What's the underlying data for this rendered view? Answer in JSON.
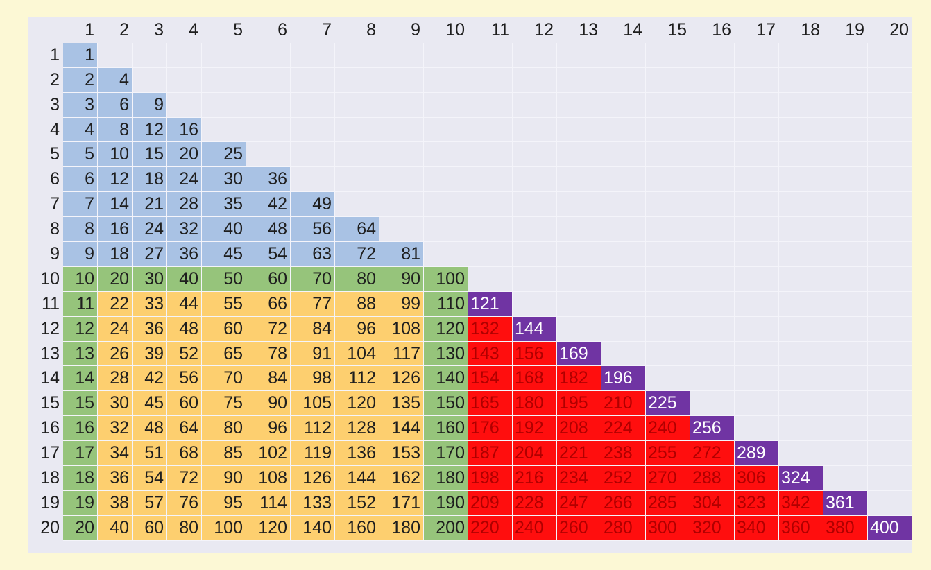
{
  "table": {
    "column_headers": [
      "1",
      "2",
      "3",
      "4",
      "5",
      "6",
      "7",
      "8",
      "9",
      "10",
      "11",
      "12",
      "13",
      "14",
      "15",
      "16",
      "17",
      "18",
      "19",
      "20"
    ],
    "row_headers": [
      "1",
      "2",
      "3",
      "4",
      "5",
      "6",
      "7",
      "8",
      "9",
      "10",
      "11",
      "12",
      "13",
      "14",
      "15",
      "16",
      "17",
      "18",
      "19",
      "20"
    ],
    "rows": [
      [
        "1"
      ],
      [
        "2",
        "4"
      ],
      [
        "3",
        "6",
        "9"
      ],
      [
        "4",
        "8",
        "12",
        "16"
      ],
      [
        "5",
        "10",
        "15",
        "20",
        "25"
      ],
      [
        "6",
        "12",
        "18",
        "24",
        "30",
        "36"
      ],
      [
        "7",
        "14",
        "21",
        "28",
        "35",
        "42",
        "49"
      ],
      [
        "8",
        "16",
        "24",
        "32",
        "40",
        "48",
        "56",
        "64"
      ],
      [
        "9",
        "18",
        "27",
        "36",
        "45",
        "54",
        "63",
        "72",
        "81"
      ],
      [
        "10",
        "20",
        "30",
        "40",
        "50",
        "60",
        "70",
        "80",
        "90",
        "100"
      ],
      [
        "11",
        "22",
        "33",
        "44",
        "55",
        "66",
        "77",
        "88",
        "99",
        "110",
        "121"
      ],
      [
        "12",
        "24",
        "36",
        "48",
        "60",
        "72",
        "84",
        "96",
        "108",
        "120",
        "132",
        "144"
      ],
      [
        "13",
        "26",
        "39",
        "52",
        "65",
        "78",
        "91",
        "104",
        "117",
        "130",
        "143",
        "156",
        "169"
      ],
      [
        "14",
        "28",
        "42",
        "56",
        "70",
        "84",
        "98",
        "112",
        "126",
        "140",
        "154",
        "168",
        "182",
        "196"
      ],
      [
        "15",
        "30",
        "45",
        "60",
        "75",
        "90",
        "105",
        "120",
        "135",
        "150",
        "165",
        "180",
        "195",
        "210",
        "225"
      ],
      [
        "16",
        "32",
        "48",
        "64",
        "80",
        "96",
        "112",
        "128",
        "144",
        "160",
        "176",
        "192",
        "208",
        "224",
        "240",
        "256"
      ],
      [
        "17",
        "34",
        "51",
        "68",
        "85",
        "102",
        "119",
        "136",
        "153",
        "170",
        "187",
        "204",
        "221",
        "238",
        "255",
        "272",
        "289"
      ],
      [
        "18",
        "36",
        "54",
        "72",
        "90",
        "108",
        "126",
        "144",
        "162",
        "180",
        "198",
        "216",
        "234",
        "252",
        "270",
        "288",
        "306",
        "324"
      ],
      [
        "19",
        "38",
        "57",
        "76",
        "95",
        "114",
        "133",
        "152",
        "171",
        "190",
        "209",
        "228",
        "247",
        "266",
        "285",
        "304",
        "323",
        "342",
        "361"
      ],
      [
        "20",
        "40",
        "60",
        "80",
        "100",
        "120",
        "140",
        "160",
        "180",
        "200",
        "220",
        "240",
        "260",
        "280",
        "300",
        "320",
        "340",
        "360",
        "380",
        "400"
      ]
    ]
  },
  "colors": {
    "background": "#fcf8d5",
    "grid": "#e9e9f2",
    "blue": "#a9c2e4",
    "green": "#96c47b",
    "yellow": "#fdcf6f",
    "purple": "#7034a3",
    "red": "#ff0e0e"
  }
}
